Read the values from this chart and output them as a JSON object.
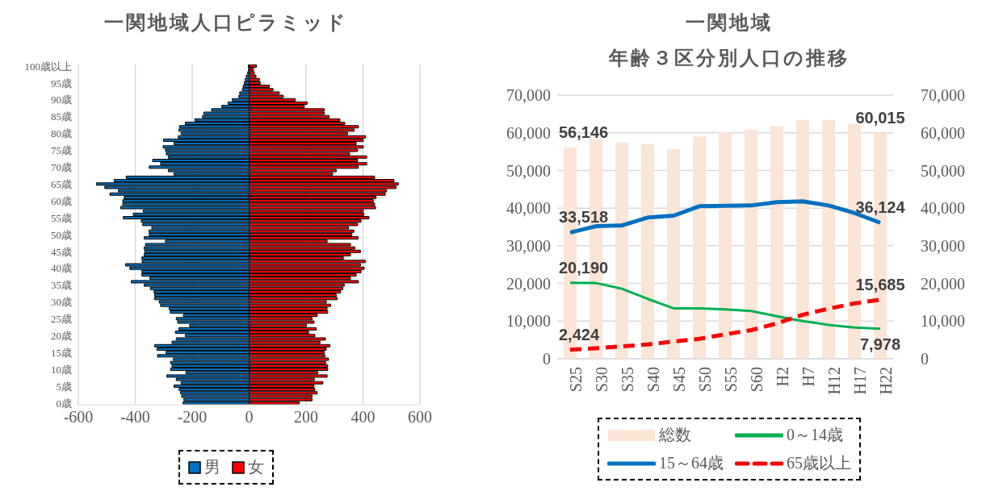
{
  "chart_data": [
    {
      "type": "bar",
      "title": "一関地域人口ピラミッド",
      "orientation": "horizontal",
      "stacked": true,
      "categories": [
        "100歳以上",
        null,
        null,
        null,
        null,
        "95歳",
        null,
        null,
        null,
        null,
        "90歳",
        null,
        null,
        null,
        null,
        "85歳",
        null,
        null,
        null,
        null,
        "80歳",
        null,
        null,
        null,
        null,
        "75歳",
        null,
        null,
        null,
        null,
        "70歳",
        null,
        null,
        null,
        null,
        "65歳",
        null,
        null,
        null,
        null,
        "60歳",
        null,
        null,
        null,
        null,
        "55歳",
        null,
        null,
        null,
        null,
        "50歳",
        null,
        null,
        null,
        null,
        "45歳",
        null,
        null,
        null,
        null,
        "40歳",
        null,
        null,
        null,
        null,
        "35歳",
        null,
        null,
        null,
        null,
        "30歳",
        null,
        null,
        null,
        null,
        "25歳",
        null,
        null,
        null,
        null,
        "20歳",
        null,
        null,
        null,
        null,
        "15歳",
        null,
        null,
        null,
        null,
        "10歳",
        null,
        null,
        null,
        null,
        "5歳",
        null,
        null,
        null,
        null,
        "0歳"
      ],
      "series": [
        {
          "name": "男",
          "color": "#0070c0",
          "values": [
            -3,
            -2,
            -5,
            -10,
            -14,
            -17,
            -21,
            -24,
            -33,
            -36,
            -59,
            -74,
            -96,
            -132,
            -159,
            -164,
            -191,
            -224,
            -244,
            -247,
            -239,
            -249,
            -301,
            -264,
            -302,
            -294,
            -291,
            -284,
            -339,
            -311,
            -351,
            -284,
            -264,
            -432,
            -474,
            -536,
            -507,
            -459,
            -489,
            -439,
            -444,
            -444,
            -451,
            -372,
            -407,
            -442,
            -379,
            -374,
            -342,
            -352,
            -351,
            -369,
            -294,
            -364,
            -369,
            -367,
            -369,
            -377,
            -376,
            -434,
            -419,
            -377,
            -377,
            -349,
            -414,
            -369,
            -347,
            -334,
            -332,
            -332,
            -316,
            -311,
            -281,
            -277,
            -231,
            -256,
            -251,
            -209,
            -247,
            -259,
            -224,
            -256,
            -271,
            -332,
            -324,
            -292,
            -322,
            -266,
            -276,
            -271,
            -276,
            -222,
            -289,
            -256,
            -239,
            -264,
            -246,
            -241,
            -237,
            -229,
            -232
          ]
        },
        {
          "name": "女",
          "color": "#ff0000",
          "values": [
            26,
            15,
            18,
            24,
            36,
            39,
            71,
            84,
            106,
            120,
            162,
            204,
            194,
            264,
            264,
            281,
            319,
            336,
            384,
            369,
            346,
            409,
            401,
            376,
            401,
            381,
            353,
            413,
            381,
            413,
            383,
            306,
            293,
            441,
            509,
            524,
            516,
            483,
            478,
            446,
            436,
            441,
            444,
            401,
            403,
            421,
            393,
            381,
            349,
            368,
            361,
            383,
            274,
            356,
            371,
            391,
            356,
            331,
            408,
            391,
            404,
            393,
            376,
            356,
            384,
            334,
            329,
            321,
            306,
            309,
            271,
            286,
            274,
            276,
            239,
            221,
            228,
            201,
            236,
            209,
            231,
            268,
            249,
            284,
            271,
            264,
            266,
            279,
            269,
            276,
            276,
            241,
            274,
            229,
            259,
            228,
            231,
            239,
            221,
            221,
            176
          ]
        }
      ],
      "xlim": [
        -600,
        600
      ],
      "xticks": [
        -600,
        -400,
        -200,
        0,
        200,
        400,
        600
      ],
      "grid": "x",
      "legend": "bottom"
    },
    {
      "type": "bar",
      "title": "一関地域",
      "subtitle": "年齢３区分別人口の推移",
      "categories": [
        "S25",
        "S30",
        "S35",
        "S40",
        "S45",
        "S50",
        "S55",
        "S60",
        "H2",
        "H7",
        "H12",
        "H17",
        "H22"
      ],
      "series": [
        {
          "name": "総数",
          "type": "bar",
          "color": "#fbe5d6",
          "values": [
            56146,
            58200,
            57500,
            57100,
            55700,
            59000,
            60100,
            60800,
            61800,
            63400,
            63400,
            62400,
            60015
          ],
          "value_labels": [
            "56,146",
            null,
            null,
            null,
            null,
            null,
            null,
            null,
            null,
            null,
            null,
            null,
            "60,015"
          ]
        },
        {
          "name": "0～14歳",
          "type": "line",
          "color": "#00b050",
          "values": [
            20190,
            20100,
            18600,
            15900,
            13400,
            13400,
            13100,
            12700,
            11300,
            10000,
            9000,
            8300,
            7978
          ],
          "value_labels": [
            "20,190",
            null,
            null,
            null,
            null,
            null,
            null,
            null,
            null,
            null,
            null,
            null,
            "7,978"
          ]
        },
        {
          "name": "15～64歳",
          "type": "line",
          "color": "#0070c0",
          "values": [
            33518,
            35200,
            35400,
            37500,
            38000,
            40500,
            40600,
            40700,
            41600,
            41800,
            40700,
            38700,
            36124
          ],
          "value_labels": [
            "33,518",
            null,
            null,
            null,
            null,
            null,
            null,
            null,
            null,
            null,
            null,
            null,
            "36,124"
          ]
        },
        {
          "name": "65歳以上",
          "type": "line",
          "color": "#ff0000",
          "line_style": "dashed",
          "values": [
            2424,
            2800,
            3300,
            3800,
            4600,
            5300,
            6500,
            7600,
            9400,
            11700,
            13300,
            14700,
            15685
          ],
          "value_labels": [
            "2,424",
            null,
            null,
            null,
            null,
            null,
            null,
            null,
            null,
            null,
            null,
            null,
            "15,685"
          ]
        }
      ],
      "ylim": [
        0,
        70000
      ],
      "yticks": [
        0,
        {
          "value": 10000,
          "label": "10,000"
        },
        {
          "value": 20000,
          "label": "20,000"
        },
        {
          "value": 30000,
          "label": "30,000"
        },
        {
          "value": 40000,
          "label": "40,000"
        },
        {
          "value": 50000,
          "label": "50,000"
        },
        {
          "value": 60000,
          "label": "60,000"
        },
        {
          "value": 70000,
          "label": "70,000"
        }
      ],
      "y2lim": [
        0,
        70000
      ],
      "y2ticks": [
        0,
        {
          "value": 10000,
          "label": "10,000"
        },
        {
          "value": 20000,
          "label": "20,000"
        },
        {
          "value": 30000,
          "label": "30,000"
        },
        {
          "value": 40000,
          "label": "40,000"
        },
        {
          "value": 50000,
          "label": "50,000"
        },
        {
          "value": 60000,
          "label": "60,000"
        },
        {
          "value": 70000,
          "label": "70,000"
        }
      ],
      "grid": "y",
      "legend": "bottom",
      "marker": "none"
    }
  ]
}
